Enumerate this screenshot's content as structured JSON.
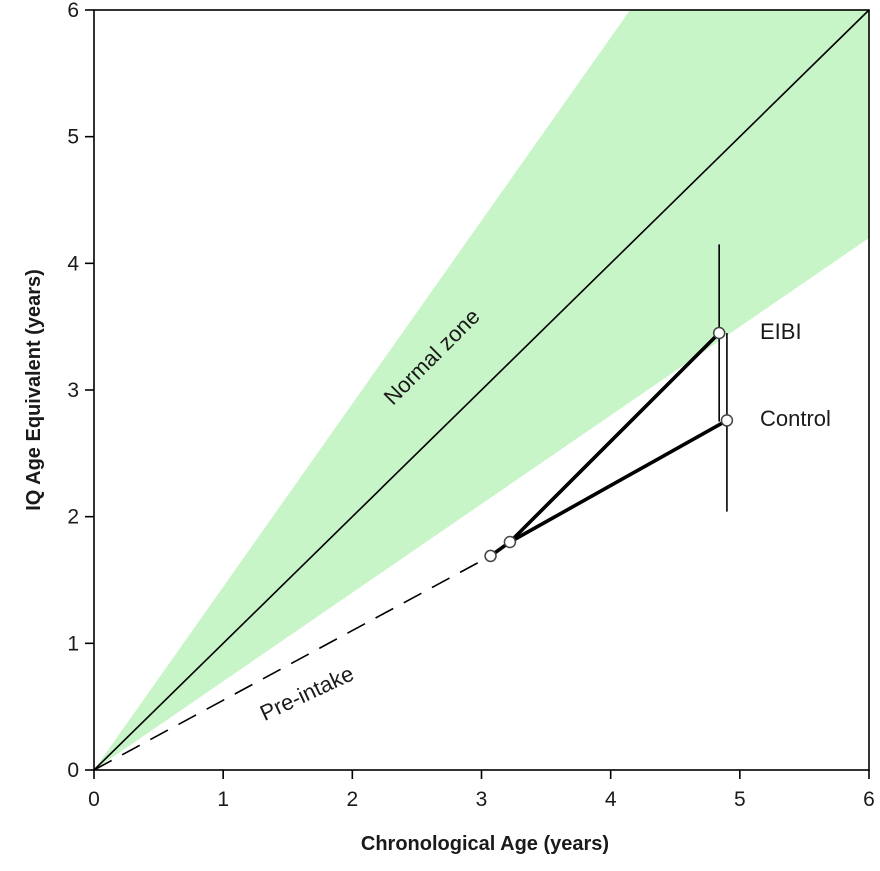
{
  "chart_data": {
    "type": "line",
    "title": "",
    "xlabel": "Chronological Age (years)",
    "ylabel": "IQ Age Equivalent (years)",
    "xlim": [
      0,
      6
    ],
    "ylim": [
      0,
      6
    ],
    "xticks": [
      "0",
      "1",
      "2",
      "3",
      "4",
      "5",
      "6"
    ],
    "yticks": [
      "0",
      "1",
      "2",
      "3",
      "4",
      "5",
      "6"
    ],
    "grid": false,
    "normal_zone": {
      "label": "Normal zone",
      "color": "#c8f5c8",
      "lower": [
        [
          0,
          0
        ],
        [
          6,
          4.2
        ]
      ],
      "upper": [
        [
          0,
          0
        ],
        [
          4.15,
          6
        ],
        [
          6,
          6
        ]
      ]
    },
    "identity_line": [
      [
        0,
        0
      ],
      [
        6,
        6
      ]
    ],
    "pre_intake": {
      "label": "Pre-intake",
      "points": [
        [
          0,
          0
        ],
        [
          3.07,
          1.69
        ]
      ]
    },
    "series": [
      {
        "name": "EIBI",
        "points": [
          [
            3.22,
            1.8
          ],
          [
            4.84,
            3.45
          ]
        ],
        "error_bar": {
          "x": 4.84,
          "low": 2.75,
          "high": 4.15
        }
      },
      {
        "name": "Control",
        "points": [
          [
            3.07,
            1.69
          ],
          [
            3.22,
            1.8
          ],
          [
            4.9,
            2.76
          ]
        ],
        "error_bar": {
          "x": 4.9,
          "low": 2.04,
          "high": 3.45
        }
      }
    ],
    "annotations": {
      "eibi": "EIBI",
      "control": "Control"
    }
  }
}
